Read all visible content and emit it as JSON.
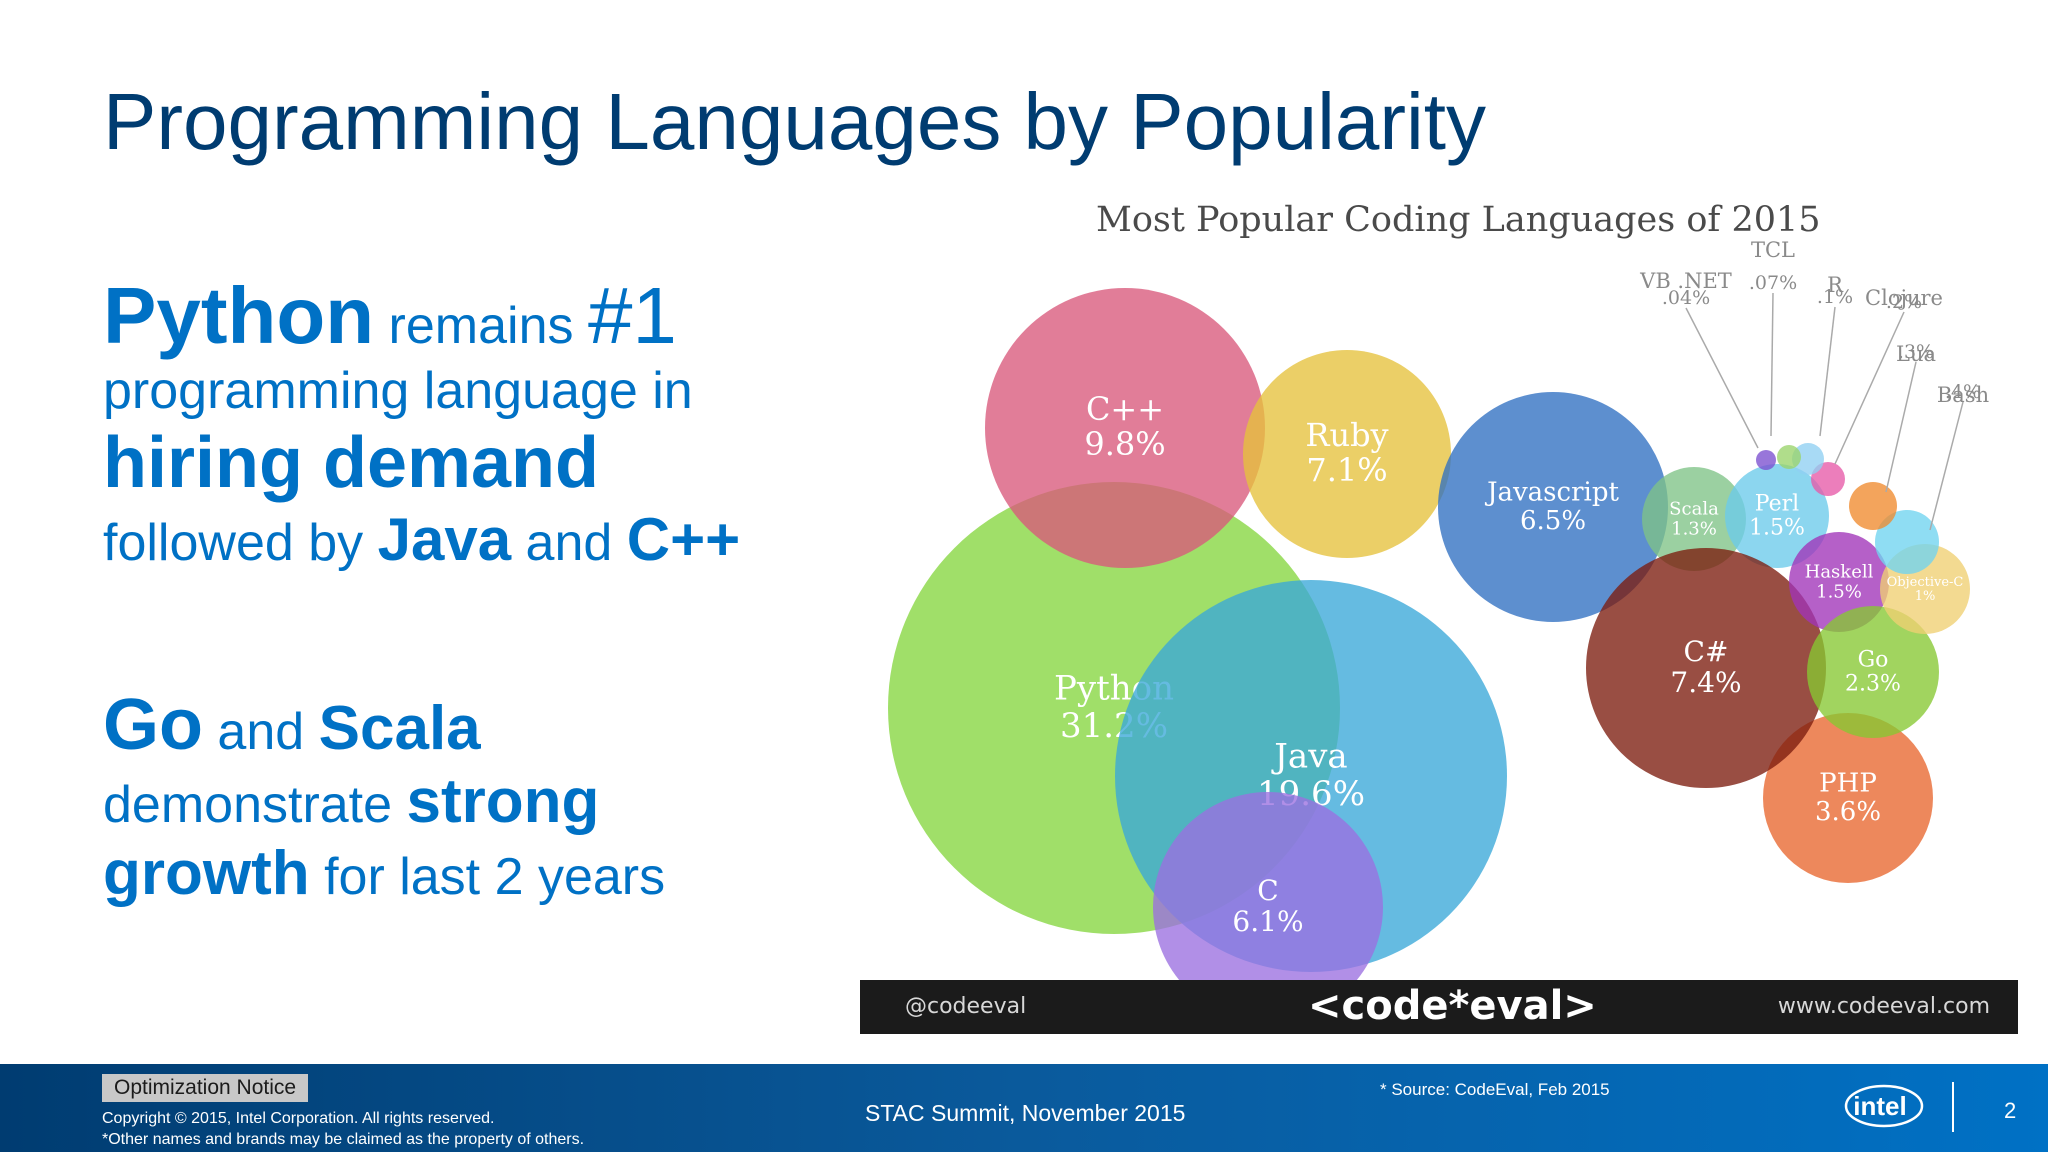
{
  "slide": {
    "title": "Programming Languages by Popularity",
    "bullets": [
      [
        {
          "t": "Python",
          "s": 80,
          "b": true
        },
        {
          "t": " remains ",
          "s": 52,
          "b": false
        },
        {
          "t": "#1",
          "s": 80,
          "b": false
        }
      ],
      [
        {
          "t": "programming language in",
          "s": 52,
          "b": false
        }
      ],
      [
        {
          "t": "hiring demand",
          "s": 72,
          "b": true
        }
      ],
      [
        {
          "t": "followed by ",
          "s": 52,
          "b": false
        },
        {
          "t": "Java",
          "s": 60,
          "b": true
        },
        {
          "t": " and ",
          "s": 52,
          "b": false
        },
        {
          "t": "C++",
          "s": 60,
          "b": true
        }
      ],
      [
        {
          "t": "",
          "s": 50,
          "b": false
        }
      ],
      [
        {
          "t": "Go",
          "s": 72,
          "b": true
        },
        {
          "t": " and ",
          "s": 52,
          "b": false
        },
        {
          "t": "Scala",
          "s": 62,
          "b": true
        }
      ],
      [
        {
          "t": "demonstrate ",
          "s": 52,
          "b": false
        },
        {
          "t": "strong",
          "s": 62,
          "b": true
        }
      ],
      [
        {
          "t": "growth",
          "s": 62,
          "b": true
        },
        {
          "t": " for last 2 years",
          "s": 52,
          "b": false
        }
      ]
    ]
  },
  "chart_data": {
    "type": "bubble",
    "title": "Most Popular Coding Languages of 2015",
    "series": [
      {
        "label": "Python",
        "value_label": "31.2%",
        "value": 31.2,
        "color": "#85d63f"
      },
      {
        "label": "Java",
        "value_label": "19.6%",
        "value": 19.6,
        "color": "#3aa8d8"
      },
      {
        "label": "C",
        "value_label": "6.1%",
        "value": 6.1,
        "color": "#9b6fe0"
      },
      {
        "label": "C++",
        "value_label": "9.8%",
        "value": 9.8,
        "color": "#d9587b"
      },
      {
        "label": "Ruby",
        "value_label": "7.1%",
        "value": 7.1,
        "color": "#e6c13c"
      },
      {
        "label": "Javascript",
        "value_label": "6.5%",
        "value": 6.5,
        "color": "#2f6fc2"
      },
      {
        "label": "Scala",
        "value_label": "1.3%",
        "value": 1.3,
        "color": "#7fc386"
      },
      {
        "label": "Perl",
        "value_label": "1.5%",
        "value": 1.5,
        "color": "#6ccbeb"
      },
      {
        "label": "PHP",
        "value_label": "3.6%",
        "value": 3.6,
        "color": "#e8672e"
      },
      {
        "label": "C#",
        "value_label": "7.4%",
        "value": 7.4,
        "color": "#7c1c0e"
      },
      {
        "label": "Haskell",
        "value_label": "1.5%",
        "value": 1.5,
        "color": "#a033b9"
      },
      {
        "label": "Go",
        "value_label": "2.3%",
        "value": 2.3,
        "color": "#86c832"
      },
      {
        "label": "Objective-C",
        "value_label": "1%",
        "value": 1,
        "color": "#f0cf72"
      },
      {
        "label": "Bash",
        "value_label": ".4%",
        "value": 0.4,
        "color": "#6fd3ef"
      },
      {
        "label": "Lua",
        "value_label": ".3%",
        "value": 0.3,
        "color": "#f08a2e"
      },
      {
        "label": "Clojure",
        "value_label": ".2%",
        "value": 0.2,
        "color": "#e75aa8"
      },
      {
        "label": "R",
        "value_label": ".1%",
        "value": 0.1,
        "color": "#8fd0f2"
      },
      {
        "label": "TCL",
        "value_label": ".07%",
        "value": 0.07,
        "color": "#9ad36a"
      },
      {
        "label": "VB .NET",
        "value_label": ".04%",
        "value": 0.04,
        "color": "#7b4fcf"
      }
    ]
  },
  "chart_footer": {
    "handle": "@codeeval",
    "logo": "<code*eval>",
    "url": "www.codeeval.com"
  },
  "footer": {
    "optimization_notice": "Optimization Notice",
    "copyright": "Copyright © 2015, Intel Corporation. All rights reserved.",
    "brands": "*Other names and brands may be claimed as the property of others.",
    "event": "STAC Summit, November 2015",
    "source": "* Source: CodeEval, Feb 2015",
    "logo_text": "intel",
    "page": "2"
  }
}
